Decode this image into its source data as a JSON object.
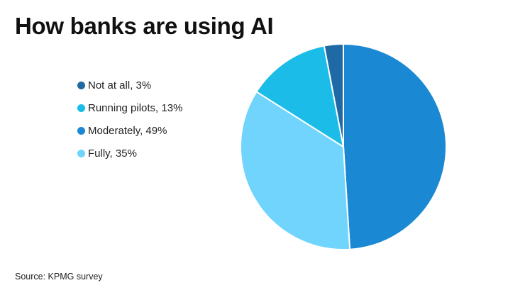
{
  "chart_data": {
    "type": "pie",
    "title": "How banks are using AI",
    "source": "Source: KPMG survey",
    "legend_position": "left",
    "slices": [
      {
        "label": "Not at all, 3%",
        "value": 3,
        "color": "#1f6aa5"
      },
      {
        "label": "Running pilots, 13%",
        "value": 13,
        "color": "#1bbce8"
      },
      {
        "label": "Moderately, 49%",
        "value": 49,
        "color": "#1b88d4"
      },
      {
        "label": "Fully, 35%",
        "value": 35,
        "color": "#70d4fd"
      }
    ]
  }
}
